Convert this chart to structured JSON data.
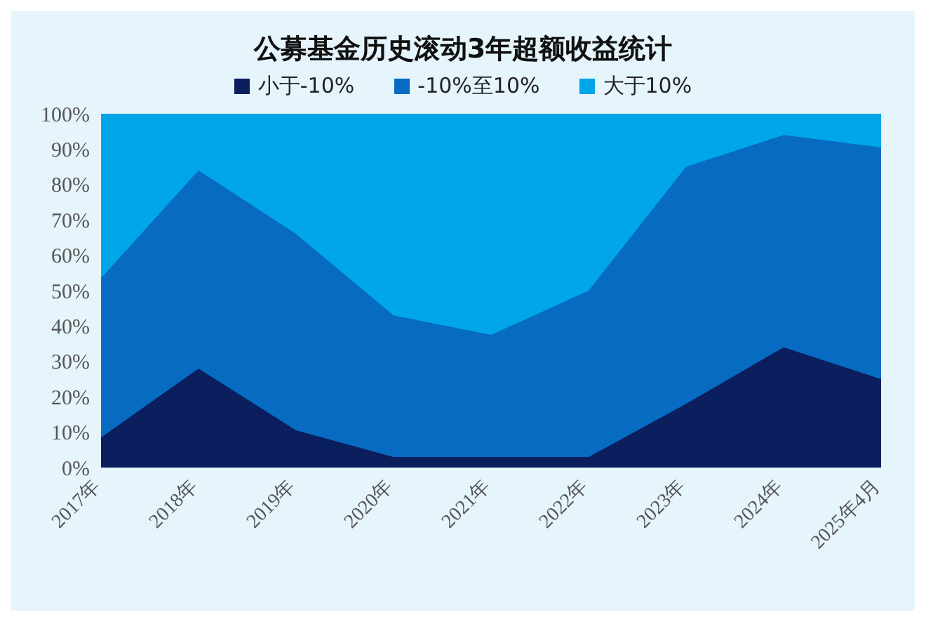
{
  "chart_data": {
    "type": "area",
    "stacked": true,
    "title": "公募基金历史滚动3年超额收益统计",
    "categories": [
      "2017年",
      "2018年",
      "2019年",
      "2020年",
      "2021年",
      "2022年",
      "2023年",
      "2024年",
      "2025年4月"
    ],
    "series": [
      {
        "name": "小于-10%",
        "color": "#0b1f5e",
        "values": [
          8.5,
          28,
          10.5,
          3,
          3,
          3,
          18,
          34,
          25
        ]
      },
      {
        "name": "-10%至10%",
        "color": "#086bc2",
        "values": [
          45,
          56,
          55.5,
          40,
          34.5,
          47,
          67,
          60,
          65.5
        ]
      },
      {
        "name": "大于10%",
        "color": "#00a6e8",
        "values": [
          46.5,
          16,
          34,
          57,
          62.5,
          50,
          15,
          6,
          9.5
        ]
      }
    ],
    "ylim": [
      0,
      100
    ],
    "yticks": [
      {
        "value": 0,
        "label": "0%"
      },
      {
        "value": 10,
        "label": "10%"
      },
      {
        "value": 20,
        "label": "20%"
      },
      {
        "value": 30,
        "label": "30%"
      },
      {
        "value": 40,
        "label": "40%"
      },
      {
        "value": 50,
        "label": "50%"
      },
      {
        "value": 60,
        "label": "60%"
      },
      {
        "value": 70,
        "label": "70%"
      },
      {
        "value": 80,
        "label": "80%"
      },
      {
        "value": 90,
        "label": "90%"
      },
      {
        "value": 100,
        "label": "100%"
      }
    ],
    "grid": false,
    "legend": "top"
  }
}
